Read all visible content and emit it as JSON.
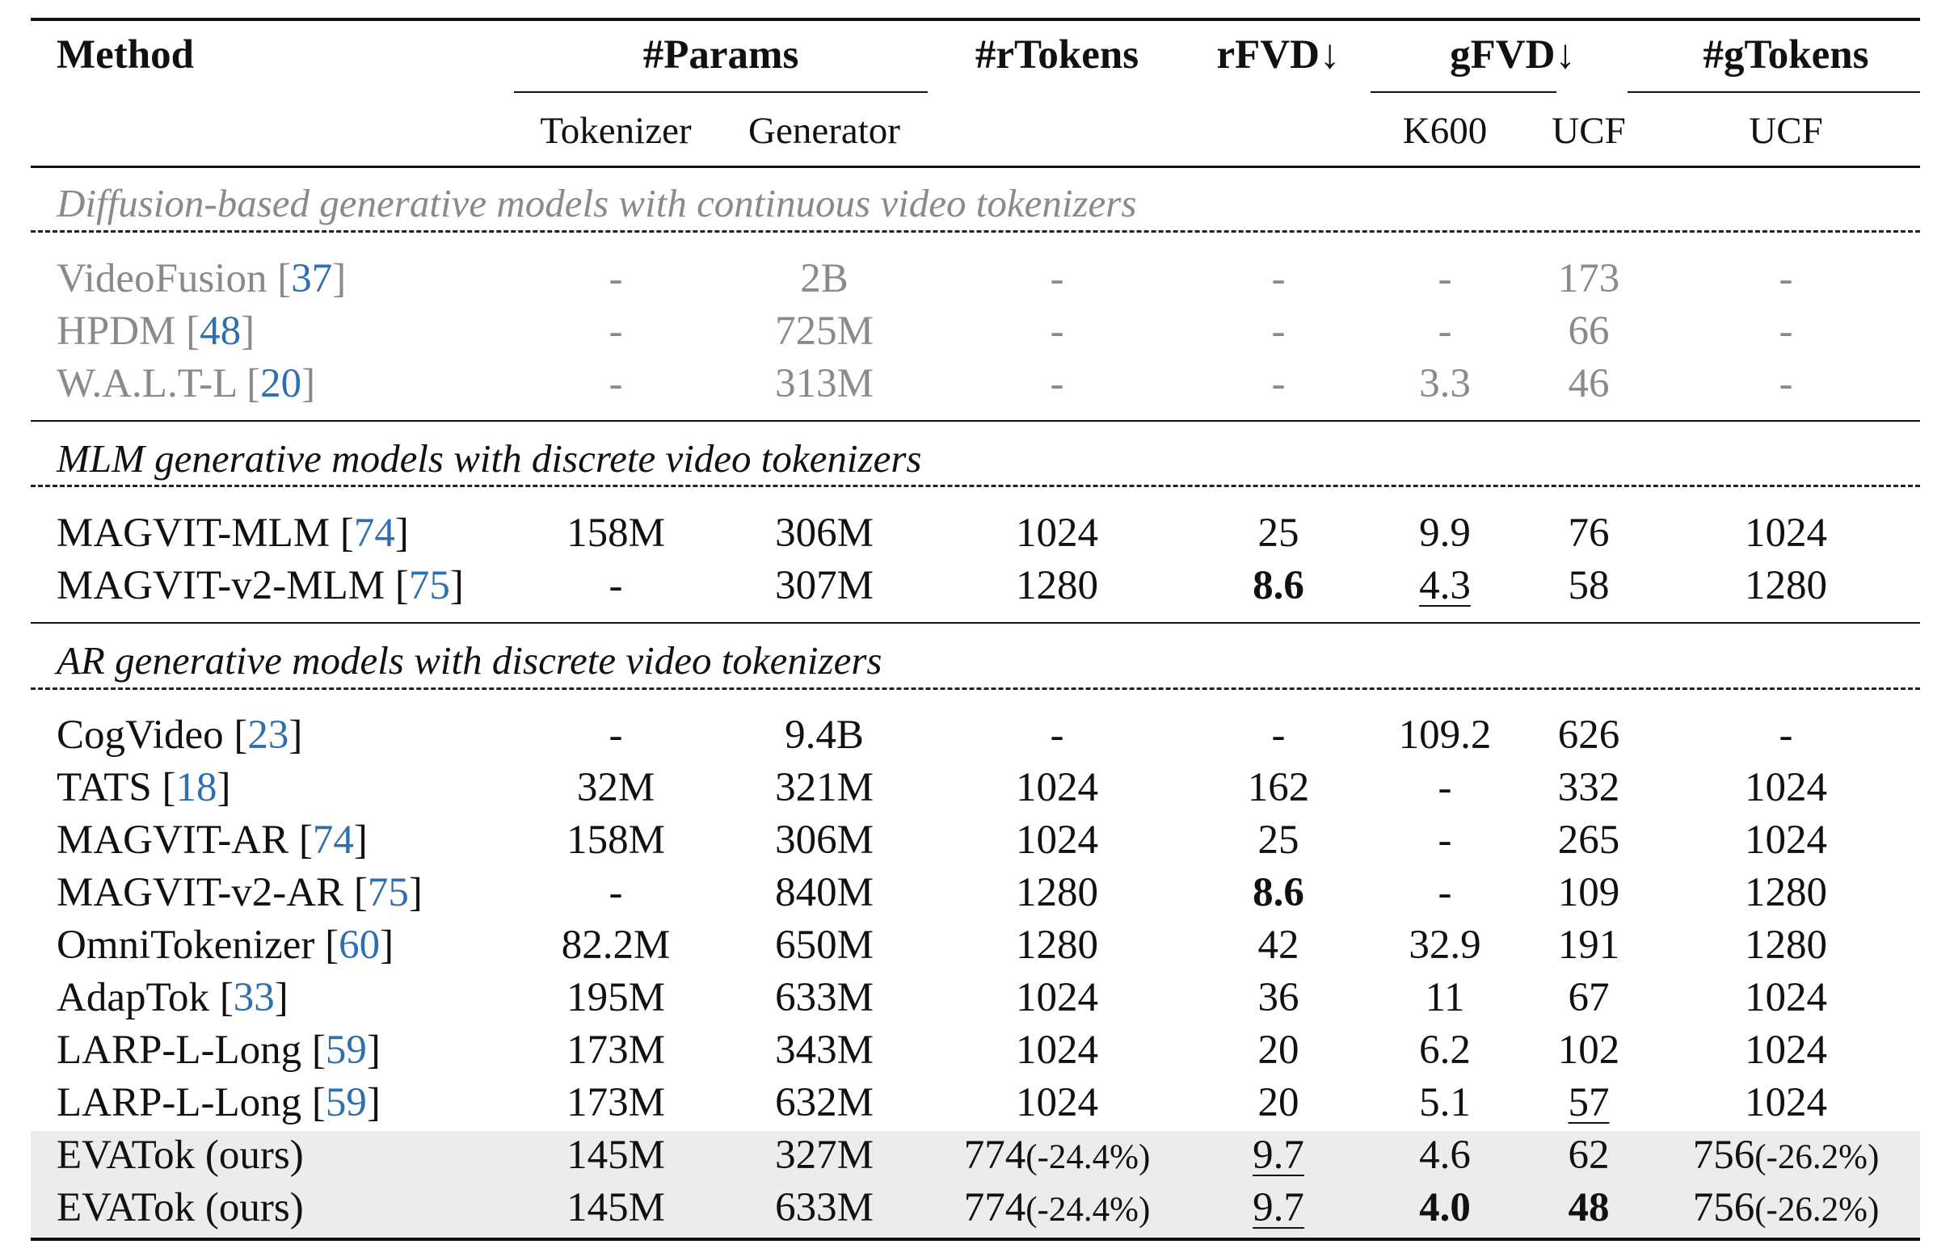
{
  "header": {
    "method": "Method",
    "params": "#Params",
    "rtokens": "#rTokens",
    "rfvd": "rFVD↓",
    "gfvd": "gFVD↓",
    "gtokens": "#gTokens",
    "tokenizer": "Tokenizer",
    "generator": "Generator",
    "k600": "K600",
    "ucf": "UCF",
    "ucf2": "UCF"
  },
  "sections": [
    {
      "title": "Diffusion-based generative models with continuous video tokenizers",
      "rows": [
        {
          "name": "VideoFusion",
          "ref": "37",
          "tokenizer": "-",
          "generator": "2B",
          "rtokens": "-",
          "rtokens_pct": "",
          "rfvd": "-",
          "k600": "-",
          "ucf": "173",
          "gtokens": "-",
          "gtokens_pct": ""
        },
        {
          "name": "HPDM",
          "ref": "48",
          "tokenizer": "-",
          "generator": "725M",
          "rtokens": "-",
          "rtokens_pct": "",
          "rfvd": "-",
          "k600": "-",
          "ucf": "66",
          "gtokens": "-",
          "gtokens_pct": ""
        },
        {
          "name": "W.A.L.T-L",
          "ref": "20",
          "tokenizer": "-",
          "generator": "313M",
          "rtokens": "-",
          "rtokens_pct": "",
          "rfvd": "-",
          "k600": "3.3",
          "ucf": "46",
          "gtokens": "-",
          "gtokens_pct": ""
        }
      ]
    },
    {
      "title": "MLM generative models with discrete video tokenizers",
      "rows": [
        {
          "name": "MAGVIT-MLM",
          "ref": "74",
          "tokenizer": "158M",
          "generator": "306M",
          "rtokens": "1024",
          "rtokens_pct": "",
          "rfvd": "25",
          "k600": "9.9",
          "ucf": "76",
          "gtokens": "1024",
          "gtokens_pct": ""
        },
        {
          "name": "MAGVIT-v2-MLM",
          "ref": "75",
          "tokenizer": "-",
          "generator": "307M",
          "rtokens": "1280",
          "rtokens_pct": "",
          "rfvd": "8.6",
          "k600": "4.3",
          "ucf": "58",
          "gtokens": "1280",
          "gtokens_pct": ""
        }
      ]
    },
    {
      "title": "AR generative models with discrete video tokenizers",
      "rows": [
        {
          "name": "CogVideo",
          "ref": "23",
          "tokenizer": "-",
          "generator": "9.4B",
          "rtokens": "-",
          "rtokens_pct": "",
          "rfvd": "-",
          "k600": "109.2",
          "ucf": "626",
          "gtokens": "-",
          "gtokens_pct": ""
        },
        {
          "name": "TATS",
          "ref": "18",
          "tokenizer": "32M",
          "generator": "321M",
          "rtokens": "1024",
          "rtokens_pct": "",
          "rfvd": "162",
          "k600": "-",
          "ucf": "332",
          "gtokens": "1024",
          "gtokens_pct": ""
        },
        {
          "name": "MAGVIT-AR",
          "ref": "74",
          "tokenizer": "158M",
          "generator": "306M",
          "rtokens": "1024",
          "rtokens_pct": "",
          "rfvd": "25",
          "k600": "-",
          "ucf": "265",
          "gtokens": "1024",
          "gtokens_pct": ""
        },
        {
          "name": "MAGVIT-v2-AR",
          "ref": "75",
          "tokenizer": "-",
          "generator": "840M",
          "rtokens": "1280",
          "rtokens_pct": "",
          "rfvd": "8.6",
          "k600": "-",
          "ucf": "109",
          "gtokens": "1280",
          "gtokens_pct": ""
        },
        {
          "name": "OmniTokenizer",
          "ref": "60",
          "tokenizer": "82.2M",
          "generator": "650M",
          "rtokens": "1280",
          "rtokens_pct": "",
          "rfvd": "42",
          "k600": "32.9",
          "ucf": "191",
          "gtokens": "1280",
          "gtokens_pct": ""
        },
        {
          "name": "AdapTok",
          "ref": "33",
          "tokenizer": "195M",
          "generator": "633M",
          "rtokens": "1024",
          "rtokens_pct": "",
          "rfvd": "36",
          "k600": "11",
          "ucf": "67",
          "gtokens": "1024",
          "gtokens_pct": ""
        },
        {
          "name": "LARP-L-Long",
          "ref": "59",
          "tokenizer": "173M",
          "generator": "343M",
          "rtokens": "1024",
          "rtokens_pct": "",
          "rfvd": "20",
          "k600": "6.2",
          "ucf": "102",
          "gtokens": "1024",
          "gtokens_pct": ""
        },
        {
          "name": "LARP-L-Long",
          "ref": "59",
          "tokenizer": "173M",
          "generator": "632M",
          "rtokens": "1024",
          "rtokens_pct": "",
          "rfvd": "20",
          "k600": "5.1",
          "ucf": "57",
          "gtokens": "1024",
          "gtokens_pct": ""
        },
        {
          "name": "EVATok (ours)",
          "ref": "",
          "tokenizer": "145M",
          "generator": "327M",
          "rtokens": "774",
          "rtokens_pct": "(-24.4%)",
          "rfvd": "9.7",
          "k600": "4.6",
          "ucf": "62",
          "gtokens": "756",
          "gtokens_pct": "(-26.2%)"
        },
        {
          "name": "EVATok (ours)",
          "ref": "",
          "tokenizer": "145M",
          "generator": "633M",
          "rtokens": "774",
          "rtokens_pct": "(-24.4%)",
          "rfvd": "9.7",
          "k600": "4.0",
          "ucf": "48",
          "gtokens": "756",
          "gtokens_pct": "(-26.2%)"
        }
      ]
    }
  ]
}
